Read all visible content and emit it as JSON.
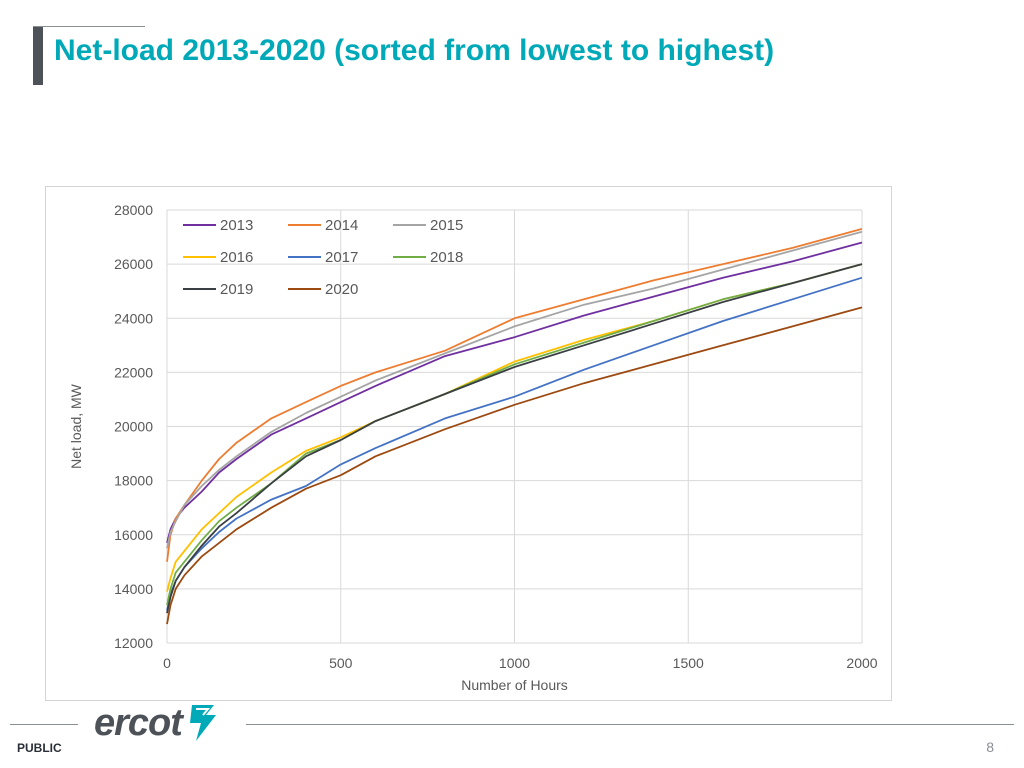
{
  "slide": {
    "title": "Net-load 2013-2020 (sorted from lowest to highest)",
    "footer_label": "PUBLIC",
    "page_number": "8",
    "logo_text": "ercot"
  },
  "colors": {
    "title": "#00a9b7",
    "text": "#595959",
    "grid": "#d9d9d9"
  },
  "chart_data": {
    "type": "line",
    "title": "",
    "xlabel": "Number of Hours",
    "ylabel": "Net load, MW",
    "xlim": [
      0,
      2000
    ],
    "ylim": [
      12000,
      28000
    ],
    "x_ticks": [
      0,
      500,
      1000,
      1500,
      2000
    ],
    "y_ticks": [
      12000,
      14000,
      16000,
      18000,
      20000,
      22000,
      24000,
      26000,
      28000
    ],
    "grid": true,
    "legend_position": "top-left",
    "x": [
      0,
      10,
      25,
      50,
      100,
      150,
      200,
      300,
      400,
      500,
      600,
      800,
      1000,
      1200,
      1400,
      1600,
      1800,
      2000
    ],
    "series": [
      {
        "name": "2013",
        "color": "#7030a0",
        "values": [
          15700,
          16200,
          16600,
          17000,
          17600,
          18300,
          18800,
          19700,
          20300,
          20900,
          21500,
          22600,
          23300,
          24100,
          24800,
          25500,
          26100,
          26800
        ]
      },
      {
        "name": "2014",
        "color": "#ed7d31",
        "values": [
          15000,
          16000,
          16600,
          17100,
          18000,
          18800,
          19400,
          20300,
          20900,
          21500,
          22000,
          22800,
          24000,
          24700,
          25400,
          26000,
          26600,
          27300
        ]
      },
      {
        "name": "2015",
        "color": "#a5a5a5",
        "values": [
          15500,
          16100,
          16500,
          17100,
          17800,
          18400,
          18900,
          19800,
          20500,
          21100,
          21700,
          22700,
          23700,
          24500,
          25100,
          25800,
          26500,
          27200
        ]
      },
      {
        "name": "2016",
        "color": "#ffc000",
        "values": [
          13900,
          14400,
          15000,
          15400,
          16200,
          16800,
          17400,
          18300,
          19100,
          19600,
          20200,
          21200,
          22400,
          23200,
          23900,
          24700,
          25300,
          26000
        ]
      },
      {
        "name": "2017",
        "color": "#4472c4",
        "values": [
          13200,
          13800,
          14300,
          14800,
          15500,
          16100,
          16600,
          17300,
          17800,
          18600,
          19200,
          20300,
          21100,
          22100,
          23000,
          23900,
          24700,
          25500
        ]
      },
      {
        "name": "2018",
        "color": "#70ad47",
        "values": [
          13400,
          14000,
          14600,
          15000,
          15800,
          16500,
          17000,
          17900,
          19000,
          19500,
          20200,
          21200,
          22300,
          23100,
          23900,
          24700,
          25300,
          26000
        ]
      },
      {
        "name": "2019",
        "color": "#3a3f44",
        "values": [
          13100,
          13700,
          14300,
          14800,
          15600,
          16300,
          16800,
          17900,
          18900,
          19500,
          20200,
          21200,
          22200,
          23000,
          23800,
          24600,
          25300,
          26000
        ]
      },
      {
        "name": "2020",
        "color": "#9c4a11",
        "values": [
          12700,
          13400,
          14000,
          14500,
          15200,
          15700,
          16200,
          17000,
          17700,
          18200,
          18900,
          19900,
          20800,
          21600,
          22300,
          23000,
          23700,
          24400
        ]
      }
    ]
  }
}
